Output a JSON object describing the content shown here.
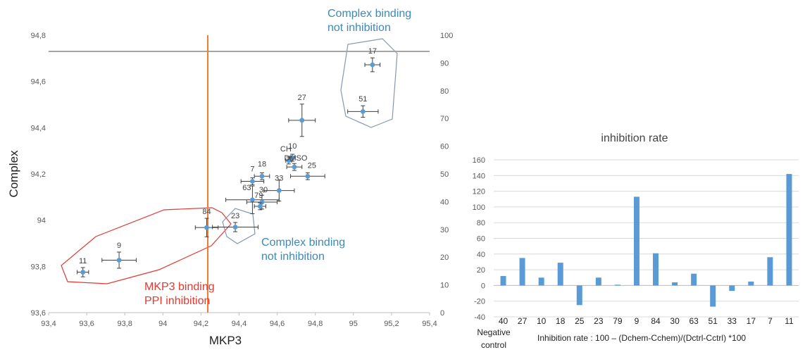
{
  "chart_data": [
    {
      "type": "scatter",
      "xlabel": "MKP3",
      "ylabel": "Complex",
      "xlim": [
        93.4,
        95.4
      ],
      "ylim": [
        93.6,
        94.8
      ],
      "xticks": [
        "93,4",
        "93,6",
        "93,8",
        "94",
        "94,2",
        "94,4",
        "94,6",
        "94,8",
        "95",
        "95,2",
        "95,4"
      ],
      "yticks": [
        "93,6",
        "93,8",
        "94",
        "94,2",
        "94,4",
        "94,6",
        "94,8"
      ],
      "y2lim": [
        0,
        100
      ],
      "y2ticks": [
        "0",
        "10",
        "20",
        "30",
        "40",
        "50",
        "60",
        "70",
        "80",
        "90",
        "100"
      ],
      "reference_lines": {
        "x": 94.23,
        "y": 94.735
      },
      "grid": false,
      "point_color": "#5b9bd5",
      "points": [
        {
          "label": "11",
          "x": 93.58,
          "y": 93.775,
          "xerr": 0.03,
          "yerr": 0.02
        },
        {
          "label": "9",
          "x": 93.77,
          "y": 93.827,
          "xerr": 0.09,
          "yerr": 0.035
        },
        {
          "label": "84",
          "x": 94.23,
          "y": 93.968,
          "xerr": 0.06,
          "yerr": 0.04
        },
        {
          "label": "23",
          "x": 94.38,
          "y": 93.97,
          "xerr": 0.12,
          "yerr": 0.02
        },
        {
          "label": "7",
          "x": 94.47,
          "y": 94.168,
          "xerr": 0.06,
          "yerr": 0.015
        },
        {
          "label": "18",
          "x": 94.52,
          "y": 94.19,
          "xerr": 0.04,
          "yerr": 0.015
        },
        {
          "label": "63",
          "x": 94.47,
          "y": 94.088,
          "xerr": 0.14,
          "yerr": 0.06
        },
        {
          "label": "30",
          "x": 94.52,
          "y": 94.078,
          "xerr": 0.08,
          "yerr": 0.03
        },
        {
          "label": "79",
          "x": 94.51,
          "y": 94.06,
          "xerr": 0.03,
          "yerr": 0.015
        },
        {
          "label": "33",
          "x": 94.61,
          "y": 94.128,
          "xerr": 0.08,
          "yerr": 0.045
        },
        {
          "label": "CH",
          "x": 94.66,
          "y": 94.258,
          "xerr": 0.015,
          "yerr": 0.015
        },
        {
          "label": "10",
          "x": 94.68,
          "y": 94.27,
          "xerr": 0.015,
          "yerr": 0.015
        },
        {
          "label": "DMSO",
          "x": 94.69,
          "y": 94.23,
          "xerr": 0.04,
          "yerr": 0.015
        },
        {
          "label": "25",
          "x": 94.76,
          "y": 94.19,
          "xerr": 0.09,
          "yerr": 0.015
        },
        {
          "label": "27",
          "x": 94.73,
          "y": 94.432,
          "xerr": 0.07,
          "yerr": 0.07
        },
        {
          "label": "51",
          "x": 95.05,
          "y": 94.47,
          "xerr": 0.08,
          "yerr": 0.025
        },
        {
          "label": "17",
          "x": 95.1,
          "y": 94.672,
          "xerr": 0.04,
          "yerr": 0.03
        }
      ],
      "annotations": [
        {
          "lines": [
            "Complex binding",
            "not inhibition"
          ],
          "color": "#3e88b5"
        },
        {
          "lines": [
            "Complex binding",
            "not inhibition"
          ],
          "color": "#3e88b5"
        },
        {
          "lines": [
            "MKP3 binding",
            "PPI inhibition"
          ],
          "color": "#e03a33"
        }
      ]
    },
    {
      "type": "bar",
      "title": "inhibition rate",
      "categories": [
        "40",
        "27",
        "10",
        "18",
        "25",
        "23",
        "79",
        "9",
        "84",
        "30",
        "63",
        "51",
        "33",
        "17",
        "7",
        "11"
      ],
      "values": [
        12,
        35,
        10,
        29,
        -25,
        10,
        1,
        113,
        41,
        4,
        15,
        -27,
        -7,
        5,
        36,
        142
      ],
      "ylim": [
        -40,
        160
      ],
      "yticks": [
        "-40",
        "-20",
        "0",
        "20",
        "40",
        "60",
        "80",
        "100",
        "120",
        "140",
        "160"
      ],
      "bar_color": "#5b9bd5",
      "grid": true,
      "footnote_left": [
        "Negative",
        "control"
      ],
      "footnote_right": "Inhibition  rate : 100 – (Dchem-Cchem)/(Dctrl-Cctrl) *100"
    }
  ]
}
